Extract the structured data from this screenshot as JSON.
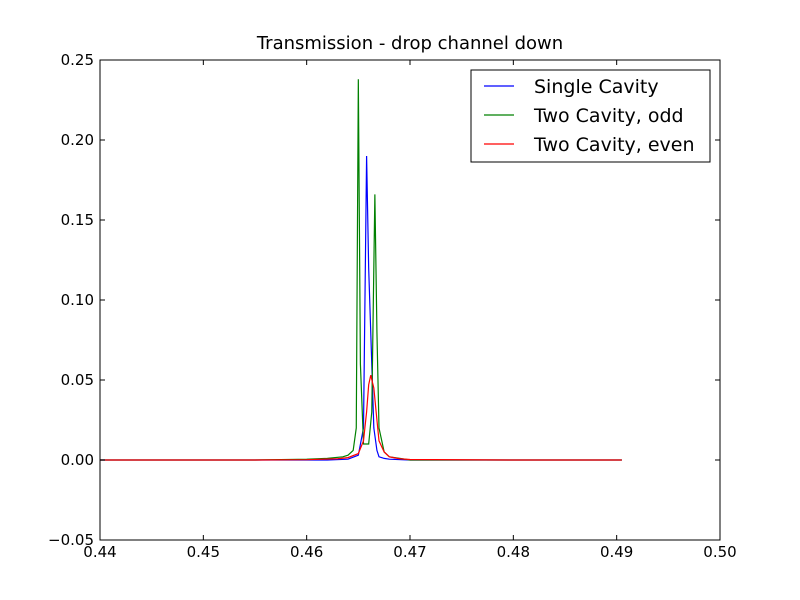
{
  "chart_data": {
    "type": "line",
    "title": "Transmission - drop channel down",
    "xlabel": "",
    "ylabel": "",
    "xlim": [
      0.44,
      0.5
    ],
    "ylim": [
      -0.05,
      0.25
    ],
    "xticks": [
      "0.44",
      "0.45",
      "0.46",
      "0.47",
      "0.48",
      "0.49",
      "0.50"
    ],
    "yticks": [
      "−0.05",
      "0.00",
      "0.05",
      "0.10",
      "0.15",
      "0.20",
      "0.25"
    ],
    "grid": false,
    "legend_position": "top-right",
    "series": [
      {
        "name": "Single Cavity",
        "color": "#0000ff",
        "x": [
          0.44,
          0.455,
          0.462,
          0.464,
          0.465,
          0.4655,
          0.4658,
          0.466,
          0.4663,
          0.4665,
          0.4668,
          0.467,
          0.4675,
          0.468,
          0.47,
          0.48,
          0.4905
        ],
        "y": [
          0,
          0,
          0,
          0.0005,
          0.003,
          0.02,
          0.19,
          0.12,
          0.06,
          0.02,
          0.006,
          0.002,
          0.001,
          0.0005,
          0,
          0,
          0
        ]
      },
      {
        "name": "Two Cavity, odd",
        "color": "#008000",
        "x": [
          0.44,
          0.455,
          0.46,
          0.462,
          0.4635,
          0.464,
          0.4645,
          0.4648,
          0.465,
          0.4652,
          0.4655,
          0.466,
          0.4663,
          0.4666,
          0.4668,
          0.467,
          0.4675,
          0.468,
          0.469,
          0.47,
          0.48,
          0.4905
        ],
        "y": [
          0,
          0,
          0.0005,
          0.001,
          0.002,
          0.003,
          0.006,
          0.02,
          0.238,
          0.06,
          0.01,
          0.01,
          0.03,
          0.166,
          0.08,
          0.02,
          0.005,
          0.002,
          0.001,
          0,
          0,
          0
        ]
      },
      {
        "name": "Two Cavity, even",
        "color": "#ff0000",
        "x": [
          0.44,
          0.455,
          0.46,
          0.463,
          0.464,
          0.465,
          0.4655,
          0.4658,
          0.466,
          0.4662,
          0.4665,
          0.4668,
          0.467,
          0.4675,
          0.468,
          0.469,
          0.47,
          0.48,
          0.4905
        ],
        "y": [
          0,
          0,
          0.0002,
          0.0008,
          0.0015,
          0.004,
          0.012,
          0.03,
          0.047,
          0.053,
          0.045,
          0.025,
          0.012,
          0.005,
          0.002,
          0.0008,
          0.0003,
          0,
          0
        ]
      }
    ]
  }
}
